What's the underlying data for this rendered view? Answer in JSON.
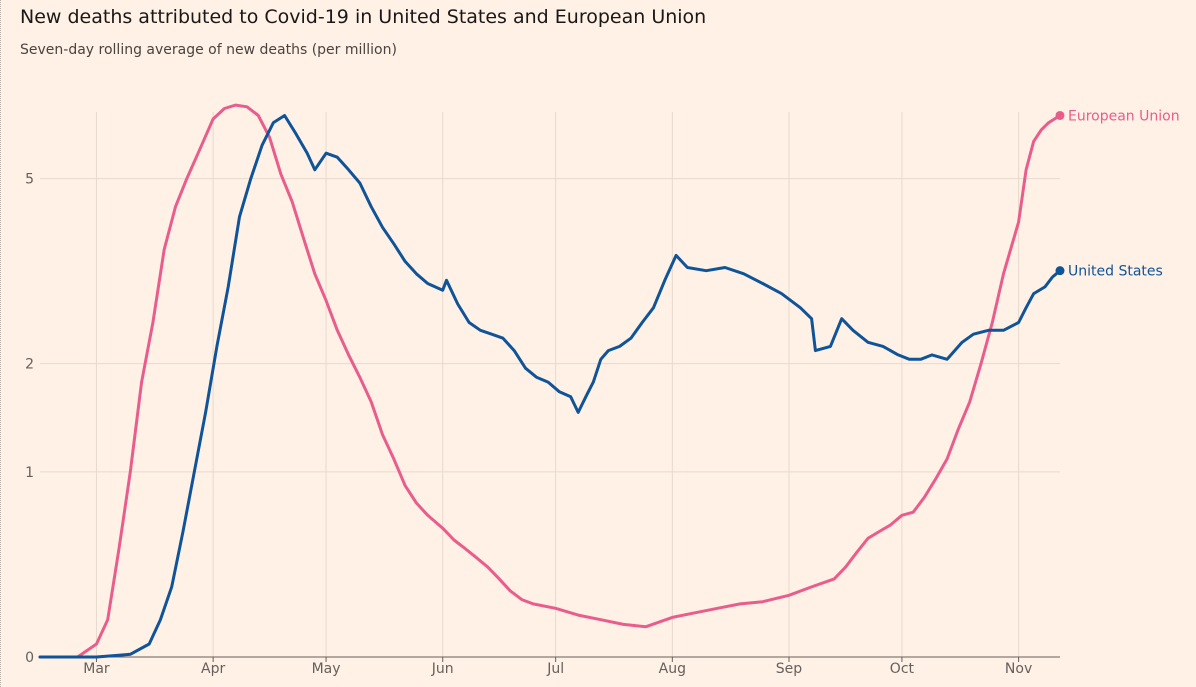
{
  "chart_data": {
    "type": "line",
    "title": "New deaths attributed to Covid-19 in United States and European Union",
    "subtitle": "Seven-day rolling average of new deaths (per million)",
    "y_scale": "log(1+x)",
    "y_ticks": [
      0,
      1,
      2,
      5
    ],
    "x_ticks": [
      "Mar",
      "Apr",
      "May",
      "Jun",
      "Jul",
      "Aug",
      "Sep",
      "Oct",
      "Nov"
    ],
    "x_tick_dates": [
      "2020-03-01",
      "2020-04-01",
      "2020-05-01",
      "2020-06-01",
      "2020-07-01",
      "2020-08-01",
      "2020-09-01",
      "2020-10-01",
      "2020-11-01"
    ],
    "x_range": [
      "2020-02-15",
      "2020-11-12"
    ],
    "grid": true,
    "series": [
      {
        "name": "European Union",
        "color": "#e95d8c",
        "points": [
          [
            "2020-02-15",
            0
          ],
          [
            "2020-02-25",
            0
          ],
          [
            "2020-03-01",
            0.05
          ],
          [
            "2020-03-04",
            0.15
          ],
          [
            "2020-03-07",
            0.5
          ],
          [
            "2020-03-10",
            1.0
          ],
          [
            "2020-03-13",
            1.8
          ],
          [
            "2020-03-16",
            2.5
          ],
          [
            "2020-03-19",
            3.6
          ],
          [
            "2020-03-22",
            4.4
          ],
          [
            "2020-03-25",
            5.0
          ],
          [
            "2020-03-28",
            5.6
          ],
          [
            "2020-04-01",
            6.5
          ],
          [
            "2020-04-04",
            6.8
          ],
          [
            "2020-04-07",
            6.9
          ],
          [
            "2020-04-10",
            6.85
          ],
          [
            "2020-04-13",
            6.6
          ],
          [
            "2020-04-16",
            6.0
          ],
          [
            "2020-04-19",
            5.1
          ],
          [
            "2020-04-22",
            4.5
          ],
          [
            "2020-04-25",
            3.8
          ],
          [
            "2020-04-28",
            3.2
          ],
          [
            "2020-05-01",
            2.8
          ],
          [
            "2020-05-04",
            2.4
          ],
          [
            "2020-05-07",
            2.1
          ],
          [
            "2020-05-10",
            1.85
          ],
          [
            "2020-05-13",
            1.6
          ],
          [
            "2020-05-16",
            1.3
          ],
          [
            "2020-05-19",
            1.1
          ],
          [
            "2020-05-22",
            0.9
          ],
          [
            "2020-05-25",
            0.78
          ],
          [
            "2020-05-28",
            0.7
          ],
          [
            "2020-06-01",
            0.62
          ],
          [
            "2020-06-04",
            0.55
          ],
          [
            "2020-06-07",
            0.5
          ],
          [
            "2020-06-10",
            0.45
          ],
          [
            "2020-06-13",
            0.4
          ],
          [
            "2020-06-16",
            0.34
          ],
          [
            "2020-06-19",
            0.28
          ],
          [
            "2020-06-22",
            0.24
          ],
          [
            "2020-06-25",
            0.22
          ],
          [
            "2020-07-01",
            0.2
          ],
          [
            "2020-07-07",
            0.17
          ],
          [
            "2020-07-13",
            0.15
          ],
          [
            "2020-07-19",
            0.13
          ],
          [
            "2020-07-25",
            0.12
          ],
          [
            "2020-08-01",
            0.16
          ],
          [
            "2020-08-07",
            0.18
          ],
          [
            "2020-08-13",
            0.2
          ],
          [
            "2020-08-19",
            0.22
          ],
          [
            "2020-08-25",
            0.23
          ],
          [
            "2020-09-01",
            0.26
          ],
          [
            "2020-09-07",
            0.3
          ],
          [
            "2020-09-13",
            0.34
          ],
          [
            "2020-09-16",
            0.4
          ],
          [
            "2020-09-19",
            0.48
          ],
          [
            "2020-09-22",
            0.56
          ],
          [
            "2020-09-25",
            0.6
          ],
          [
            "2020-09-28",
            0.64
          ],
          [
            "2020-10-01",
            0.7
          ],
          [
            "2020-10-04",
            0.72
          ],
          [
            "2020-10-07",
            0.82
          ],
          [
            "2020-10-10",
            0.95
          ],
          [
            "2020-10-13",
            1.1
          ],
          [
            "2020-10-16",
            1.35
          ],
          [
            "2020-10-19",
            1.6
          ],
          [
            "2020-10-22",
            2.0
          ],
          [
            "2020-10-25",
            2.5
          ],
          [
            "2020-10-28",
            3.2
          ],
          [
            "2020-11-01",
            4.1
          ],
          [
            "2020-11-03",
            5.2
          ],
          [
            "2020-11-05",
            5.9
          ],
          [
            "2020-11-07",
            6.2
          ],
          [
            "2020-11-09",
            6.4
          ],
          [
            "2020-11-12",
            6.6
          ]
        ]
      },
      {
        "name": "United States",
        "color": "#0f5499",
        "points": [
          [
            "2020-02-15",
            0
          ],
          [
            "2020-03-01",
            0
          ],
          [
            "2020-03-10",
            0.01
          ],
          [
            "2020-03-15",
            0.05
          ],
          [
            "2020-03-18",
            0.15
          ],
          [
            "2020-03-21",
            0.3
          ],
          [
            "2020-03-24",
            0.6
          ],
          [
            "2020-03-27",
            1.0
          ],
          [
            "2020-03-30",
            1.5
          ],
          [
            "2020-04-02",
            2.2
          ],
          [
            "2020-04-05",
            3.0
          ],
          [
            "2020-04-08",
            4.2
          ],
          [
            "2020-04-11",
            5.0
          ],
          [
            "2020-04-14",
            5.8
          ],
          [
            "2020-04-17",
            6.4
          ],
          [
            "2020-04-20",
            6.6
          ],
          [
            "2020-04-23",
            6.1
          ],
          [
            "2020-04-26",
            5.6
          ],
          [
            "2020-04-28",
            5.2
          ],
          [
            "2020-05-01",
            5.6
          ],
          [
            "2020-05-04",
            5.5
          ],
          [
            "2020-05-07",
            5.2
          ],
          [
            "2020-05-10",
            4.9
          ],
          [
            "2020-05-13",
            4.4
          ],
          [
            "2020-05-16",
            4.0
          ],
          [
            "2020-05-19",
            3.7
          ],
          [
            "2020-05-22",
            3.4
          ],
          [
            "2020-05-25",
            3.2
          ],
          [
            "2020-05-28",
            3.05
          ],
          [
            "2020-06-01",
            2.95
          ],
          [
            "2020-06-02",
            3.1
          ],
          [
            "2020-06-05",
            2.75
          ],
          [
            "2020-06-08",
            2.5
          ],
          [
            "2020-06-11",
            2.4
          ],
          [
            "2020-06-14",
            2.35
          ],
          [
            "2020-06-17",
            2.3
          ],
          [
            "2020-06-20",
            2.15
          ],
          [
            "2020-06-23",
            1.95
          ],
          [
            "2020-06-26",
            1.85
          ],
          [
            "2020-06-29",
            1.8
          ],
          [
            "2020-07-02",
            1.7
          ],
          [
            "2020-07-05",
            1.65
          ],
          [
            "2020-07-07",
            1.5
          ],
          [
            "2020-07-09",
            1.65
          ],
          [
            "2020-07-11",
            1.8
          ],
          [
            "2020-07-13",
            2.05
          ],
          [
            "2020-07-15",
            2.15
          ],
          [
            "2020-07-18",
            2.2
          ],
          [
            "2020-07-21",
            2.3
          ],
          [
            "2020-07-24",
            2.5
          ],
          [
            "2020-07-27",
            2.7
          ],
          [
            "2020-07-30",
            3.1
          ],
          [
            "2020-08-02",
            3.5
          ],
          [
            "2020-08-05",
            3.3
          ],
          [
            "2020-08-10",
            3.25
          ],
          [
            "2020-08-15",
            3.3
          ],
          [
            "2020-08-20",
            3.2
          ],
          [
            "2020-08-25",
            3.05
          ],
          [
            "2020-08-30",
            2.9
          ],
          [
            "2020-09-04",
            2.7
          ],
          [
            "2020-09-07",
            2.55
          ],
          [
            "2020-09-08",
            2.15
          ],
          [
            "2020-09-12",
            2.2
          ],
          [
            "2020-09-15",
            2.55
          ],
          [
            "2020-09-18",
            2.4
          ],
          [
            "2020-09-22",
            2.25
          ],
          [
            "2020-09-26",
            2.2
          ],
          [
            "2020-09-30",
            2.1
          ],
          [
            "2020-10-03",
            2.05
          ],
          [
            "2020-10-06",
            2.05
          ],
          [
            "2020-10-09",
            2.1
          ],
          [
            "2020-10-13",
            2.05
          ],
          [
            "2020-10-17",
            2.25
          ],
          [
            "2020-10-20",
            2.35
          ],
          [
            "2020-10-24",
            2.4
          ],
          [
            "2020-10-28",
            2.4
          ],
          [
            "2020-11-01",
            2.5
          ],
          [
            "2020-11-03",
            2.7
          ],
          [
            "2020-11-05",
            2.9
          ],
          [
            "2020-11-08",
            3.0
          ],
          [
            "2020-11-10",
            3.15
          ],
          [
            "2020-11-12",
            3.25
          ]
        ]
      }
    ]
  }
}
